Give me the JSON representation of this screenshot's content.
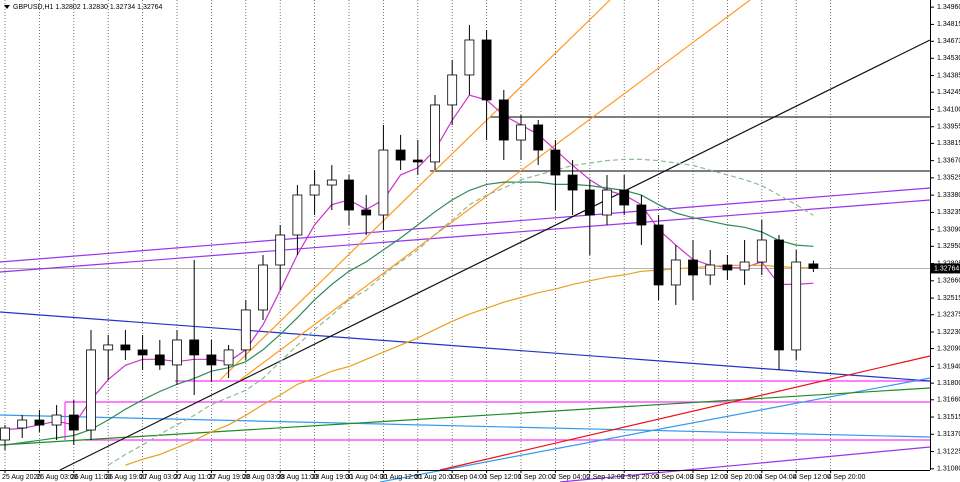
{
  "chart_data": {
    "type": "candlestick",
    "title": "GBPUSD,H1  1.32802 1.32830 1.32734 1.32764",
    "categories": [
      "25 Aug 2020",
      null,
      "26 Aug 03:00",
      null,
      "26 Aug 11:00",
      null,
      "26 Aug 19:00",
      null,
      "27 Aug 03:00",
      null,
      "27 Aug 11:00",
      null,
      "27 Aug 19:00",
      null,
      "28 Aug 03:00",
      null,
      "28 Aug 11:00",
      null,
      "28 Aug 19:00",
      null,
      "31 Aug 04:00",
      null,
      "31 Aug 12:00",
      null,
      "31 Aug 20:00",
      null,
      "1 Sep 04:00",
      null,
      "1 Sep 12:00",
      null,
      "1 Sep 20:00",
      null,
      "2 Sep 04:00",
      null,
      "2 Sep 12:00",
      null,
      "2 Sep 20:00",
      null,
      "3 Sep 04:00",
      null,
      "3 Sep 12:00",
      null,
      "3 Sep 20:00",
      null,
      "4 Sep 04:00",
      null,
      "4 Sep 12:00",
      null,
      "4 Sep 20:00"
    ],
    "open": [
      1.31322,
      1.31423,
      1.3149,
      1.31448,
      1.31532,
      1.31406,
      1.32079,
      1.32121,
      1.32079,
      1.32037,
      1.31953,
      1.32163,
      1.32037,
      1.31953,
      1.32079,
      1.32415,
      1.32793,
      1.33045,
      1.33381,
      1.33465,
      1.33507,
      1.33255,
      1.33213,
      1.33759,
      1.33675,
      1.33659,
      1.34138,
      1.3439,
      1.34684,
      1.3418,
      1.33843,
      1.3397,
      1.33759,
      1.33549,
      1.33423,
      1.33213,
      1.33423,
      1.33297,
      1.33129,
      1.32625,
      1.32835,
      1.32709,
      1.32793,
      1.32751,
      1.32818,
      1.33003,
      1.32079,
      1.32802,
      null
    ],
    "high": [
      1.31448,
      1.31532,
      1.31574,
      1.31616,
      1.31658,
      1.32247,
      1.32205,
      1.32247,
      1.32205,
      1.32163,
      1.32247,
      1.32835,
      1.32163,
      1.32121,
      1.32499,
      1.32877,
      1.33129,
      1.33465,
      1.33591,
      1.33633,
      1.33549,
      1.33381,
      1.3397,
      1.33886,
      1.33843,
      1.34222,
      1.34516,
      1.3481,
      1.34768,
      1.34264,
      1.34054,
      1.34012,
      1.33843,
      1.33675,
      1.33507,
      1.33549,
      1.33549,
      1.33381,
      1.33213,
      1.32961,
      1.33003,
      1.32919,
      1.32877,
      1.33003,
      1.33171,
      1.33045,
      1.32919,
      1.3283,
      null
    ],
    "low": [
      1.31238,
      1.31339,
      1.3139,
      1.31322,
      1.3128,
      1.31322,
      1.31827,
      1.31995,
      1.31911,
      1.31911,
      1.31785,
      1.317,
      1.3181,
      1.31843,
      1.31995,
      1.32331,
      1.32583,
      1.32877,
      1.33213,
      1.33255,
      1.33129,
      1.33045,
      1.33087,
      1.33591,
      1.33549,
      1.33591,
      1.3397,
      1.34222,
      1.33843,
      1.33675,
      1.33675,
      1.33633,
      1.33255,
      1.33213,
      1.32877,
      1.33129,
      1.33213,
      1.32961,
      1.32499,
      1.32457,
      1.32499,
      1.32625,
      1.32667,
      1.32625,
      1.32709,
      1.31911,
      1.31995,
      1.32734,
      null
    ],
    "close": [
      1.31423,
      1.3149,
      1.31448,
      1.31532,
      1.31406,
      1.32079,
      1.32121,
      1.32079,
      1.32037,
      1.31953,
      1.32163,
      1.32037,
      1.31953,
      1.32079,
      1.32415,
      1.32793,
      1.33045,
      1.33381,
      1.33465,
      1.33507,
      1.33255,
      1.33213,
      1.33759,
      1.33675,
      1.33659,
      1.34138,
      1.3439,
      1.34684,
      1.3418,
      1.33843,
      1.3397,
      1.33759,
      1.33549,
      1.33423,
      1.33213,
      1.33423,
      1.33297,
      1.33129,
      1.32625,
      1.32835,
      1.32709,
      1.32793,
      1.32751,
      1.32818,
      1.33003,
      1.32079,
      1.32818,
      1.32764,
      null
    ],
    "bull_color": "#ffffff",
    "bear_color": "#000000",
    "wick_color": "#000000",
    "series": [
      {
        "color": "#cc33cc",
        "style": "solid",
        "values": [
          1.3141,
          1.3142,
          1.3145,
          1.3148,
          1.3145,
          1.3166,
          1.3183,
          1.3195,
          1.32,
          1.32,
          1.3198,
          1.32,
          1.32,
          1.3198,
          1.3208,
          1.3229,
          1.3258,
          1.3288,
          1.3313,
          1.333,
          1.3334,
          1.3326,
          1.3334,
          1.3355,
          1.3361,
          1.3376,
          1.3401,
          1.3422,
          1.3418,
          1.3405,
          1.3397,
          1.3389,
          1.3376,
          1.3363,
          1.3351,
          1.3342,
          1.3338,
          1.333,
          1.3309,
          1.3296,
          1.3284,
          1.3279,
          1.3277,
          1.3277,
          1.3282,
          1.3263,
          1.3263,
          1.3264,
          null
        ]
      },
      {
        "color": "#2e8b57",
        "style": "solid",
        "values": [
          1.3128,
          1.313,
          1.3132,
          1.3134,
          1.3136,
          1.3141,
          1.3149,
          1.3158,
          1.3166,
          1.3173,
          1.3179,
          1.3184,
          1.319,
          1.3193,
          1.3198,
          1.3208,
          1.3221,
          1.3235,
          1.325,
          1.3263,
          1.3274,
          1.3282,
          1.3292,
          1.3302,
          1.3313,
          1.3324,
          1.3334,
          1.3342,
          1.3347,
          1.3349,
          1.3349,
          1.3349,
          1.3347,
          1.3347,
          1.3346,
          1.3344,
          1.3342,
          1.3338,
          1.333,
          1.3323,
          1.3319,
          1.3316,
          1.3313,
          1.3311,
          1.3307,
          1.33,
          1.3296,
          1.3295,
          null
        ]
      },
      {
        "color": "#e8a020",
        "style": "solid",
        "values": [
          null,
          null,
          null,
          null,
          null,
          null,
          null,
          1.3111,
          1.3116,
          1.312,
          1.3126,
          1.3132,
          1.3139,
          1.3145,
          1.3153,
          1.3162,
          1.317,
          1.3179,
          1.3184,
          1.319,
          1.3194,
          1.32,
          1.3206,
          1.3212,
          1.3218,
          1.3225,
          1.3232,
          1.3238,
          1.3243,
          1.3248,
          1.3252,
          1.3256,
          1.3259,
          1.3263,
          1.3266,
          1.3269,
          1.3271,
          1.3274,
          1.3275,
          1.3276,
          1.3277,
          1.3278,
          1.3279,
          1.3279,
          1.3279,
          1.3278,
          1.3277,
          1.3277,
          null
        ]
      },
      {
        "color": "#8fbc8f",
        "style": "dashed",
        "values": [
          null,
          null,
          null,
          null,
          null,
          null,
          1.3111,
          1.312,
          1.3128,
          1.3137,
          1.3145,
          1.3153,
          1.3162,
          1.3168,
          1.3174,
          1.3184,
          1.3198,
          1.3212,
          1.3225,
          1.3237,
          1.325,
          1.3258,
          1.3271,
          1.3282,
          1.3292,
          1.3305,
          1.3317,
          1.333,
          1.3338,
          1.3344,
          1.3351,
          1.3355,
          1.3359,
          1.3363,
          1.3365,
          1.3367,
          1.3368,
          1.3368,
          1.3367,
          1.3365,
          1.3363,
          1.3359,
          1.3355,
          1.3351,
          1.3346,
          1.3338,
          1.333,
          1.3321,
          null
        ]
      }
    ],
    "current_price": {
      "value": 1.32764,
      "label": "1.32764"
    },
    "ylim": [
      1.3107,
      1.3502
    ],
    "yticks": [
      {
        "value": 1.3496,
        "label": "1.34960"
      },
      1.34815,
      1.34673,
      {
        "value": 1.3453,
        "label": "1.34530"
      },
      1.34385,
      1.34245,
      {
        "value": 1.341,
        "label": "1.34100"
      },
      1.33955,
      1.33815,
      {
        "value": 1.3367,
        "label": "1.33670"
      },
      1.33525,
      {
        "value": 1.3338,
        "label": "1.33380"
      },
      1.33235,
      {
        "value": 1.3309,
        "label": "1.33090"
      },
      {
        "value": 1.3295,
        "label": "1.32950"
      },
      1.32805,
      {
        "value": 1.3266,
        "label": "1.32660"
      },
      1.32515,
      1.32375,
      {
        "value": 1.3223,
        "label": "1.32230"
      },
      {
        "value": 1.3209,
        "label": "1.32090"
      },
      {
        "value": 1.3194,
        "label": "1.31940"
      },
      {
        "value": 1.318,
        "label": "1.31800"
      },
      {
        "value": 1.3166,
        "label": "1.31660"
      },
      1.31515,
      {
        "value": 1.3137,
        "label": "1.31370"
      },
      1.31225,
      {
        "value": 1.3108,
        "label": "1.31080"
      }
    ],
    "x_grid": true
  }
}
